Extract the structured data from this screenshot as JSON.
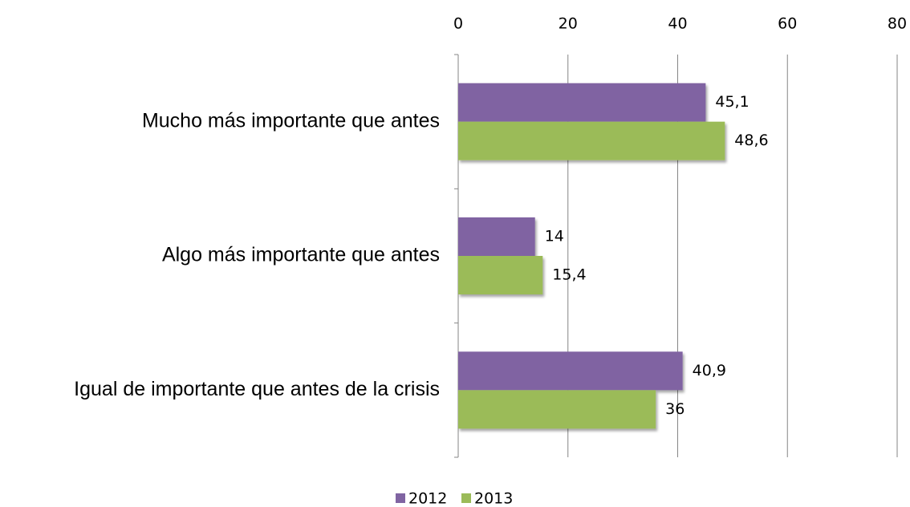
{
  "chart_data": {
    "type": "hbar",
    "categories": [
      "Mucho más importante que antes",
      "Algo más importante que antes",
      "Igual de importante que antes de la crisis"
    ],
    "series": [
      {
        "name": "2012",
        "color": "#8064a2",
        "values": [
          45.1,
          14,
          40.9
        ],
        "value_labels": [
          "45,1",
          "14",
          "40,9"
        ]
      },
      {
        "name": "2013",
        "color": "#9bbb59",
        "values": [
          48.6,
          15.4,
          36
        ],
        "value_labels": [
          "48,6",
          "15,4",
          "36"
        ]
      }
    ],
    "xlim": [
      0,
      80
    ],
    "xticks": [
      0,
      20,
      40,
      60,
      80
    ],
    "grid": true,
    "legend": "bottom"
  }
}
